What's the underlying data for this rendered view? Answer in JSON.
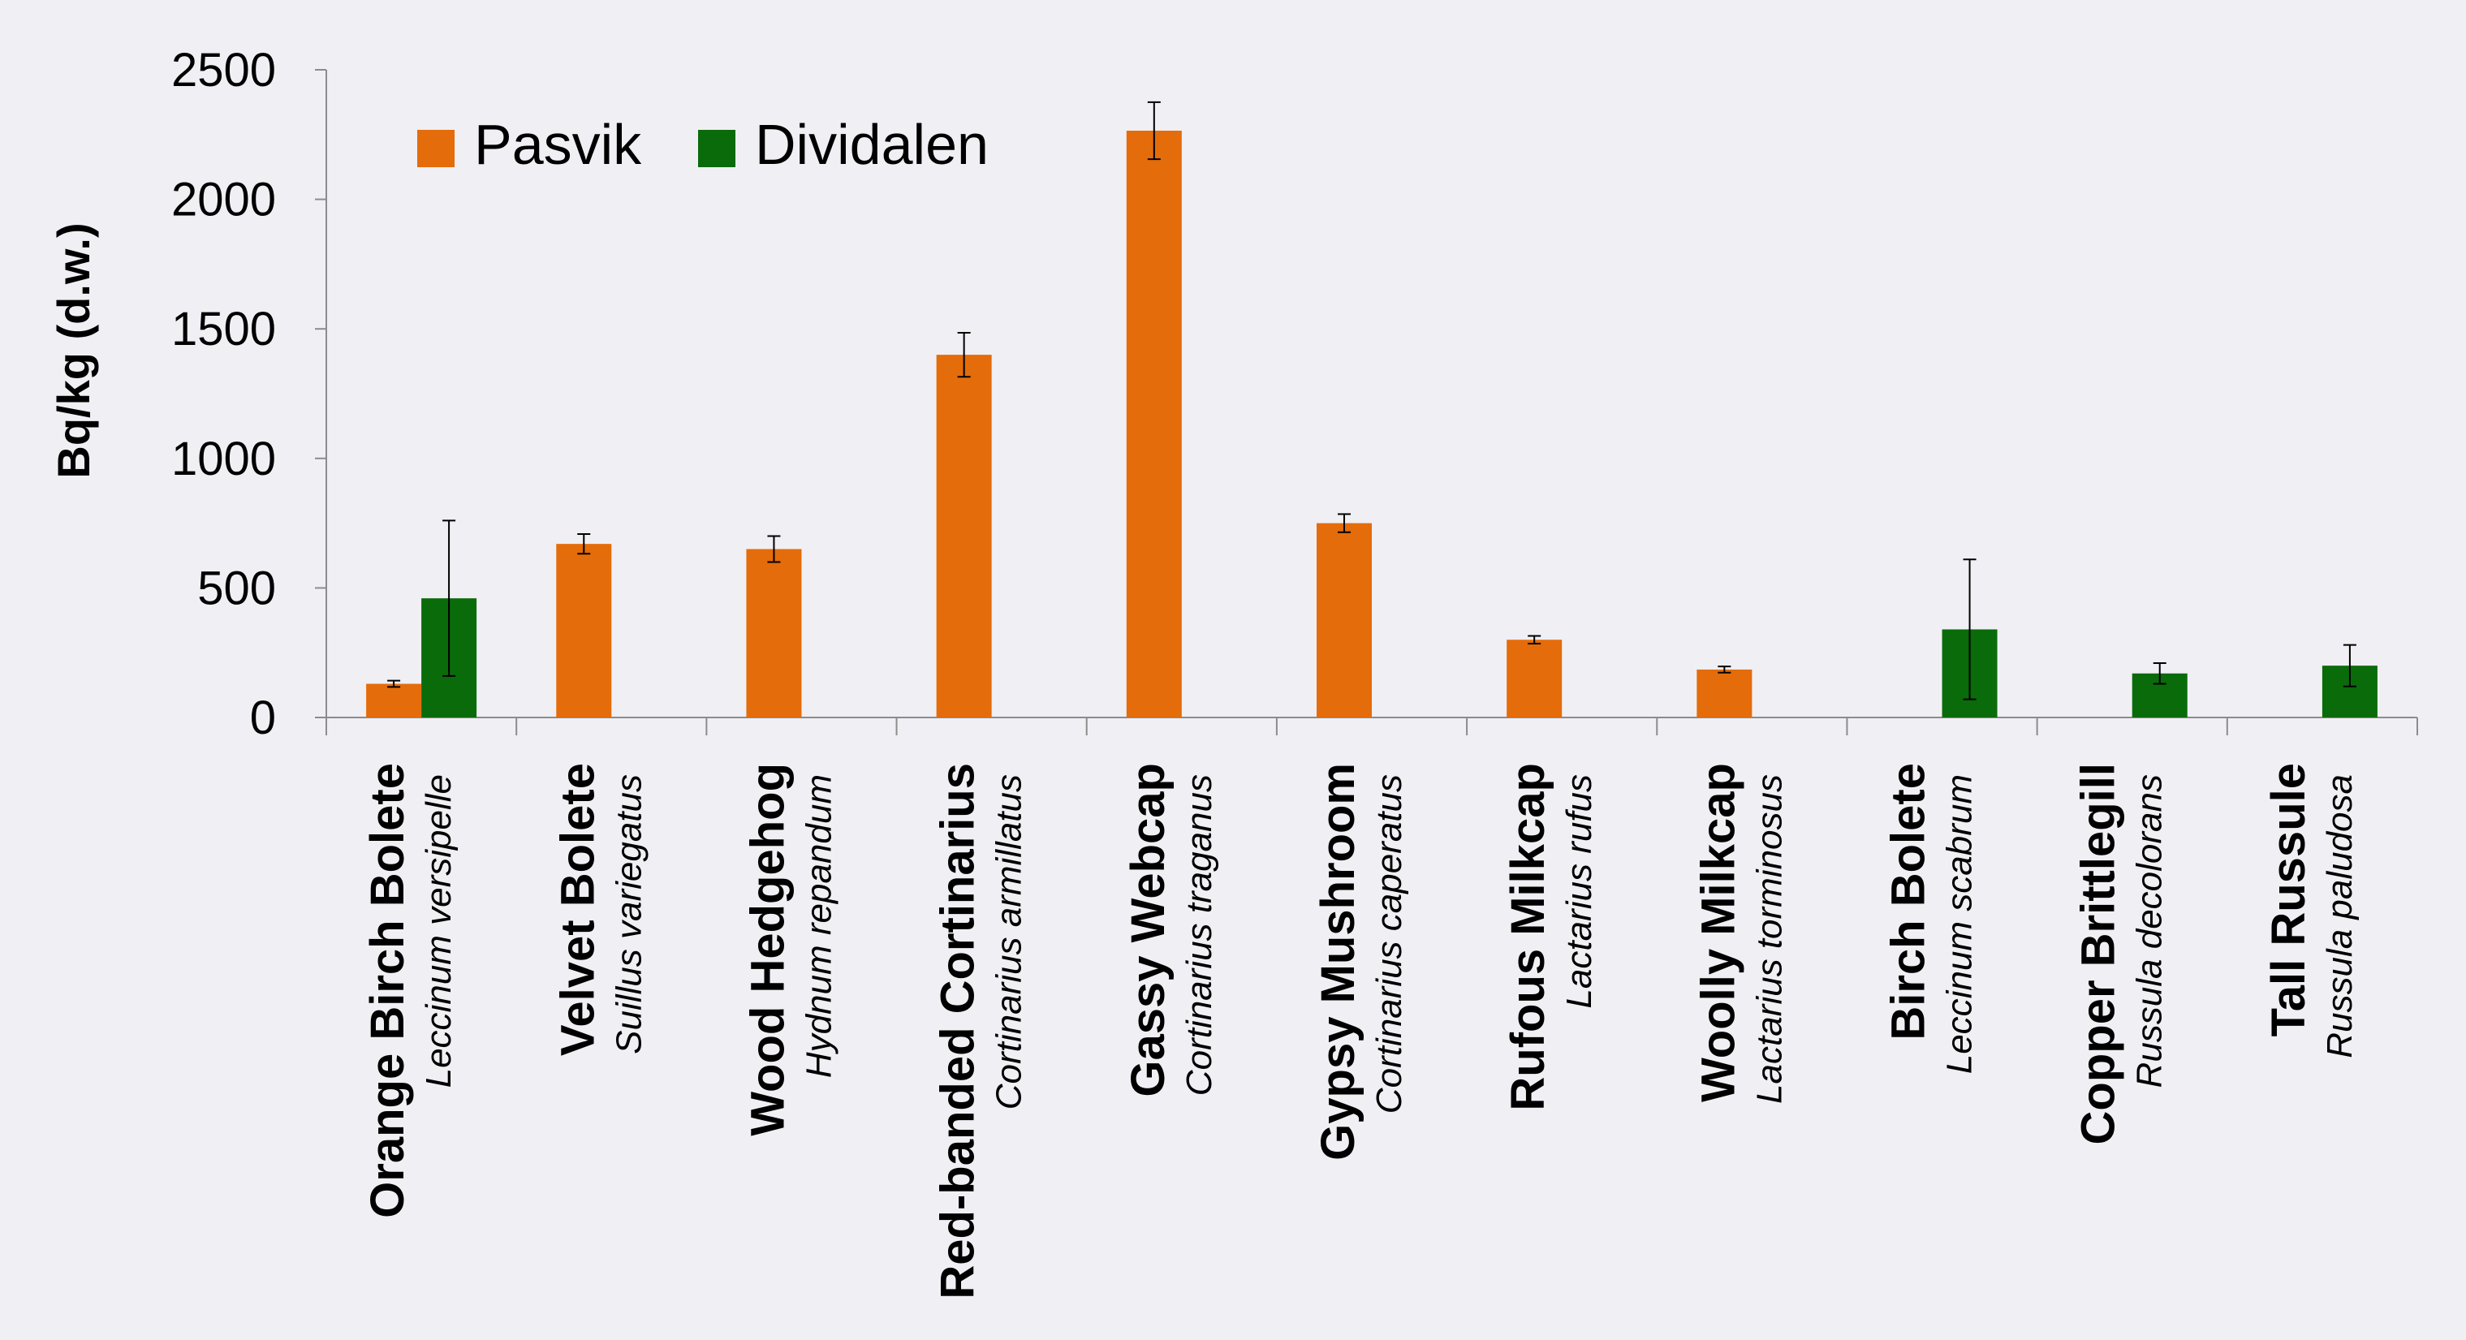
{
  "chart_data": {
    "type": "bar",
    "title": "",
    "xlabel": "",
    "ylabel": "Bq/kg (d.w.)",
    "ylim": [
      0,
      2500
    ],
    "yticks": [
      0,
      500,
      1000,
      1500,
      2000,
      2500
    ],
    "grid": false,
    "legend_position": "top-left",
    "categories": [
      {
        "common": "Orange Birch Bolete",
        "latin": "Leccinum versipelle"
      },
      {
        "common": "Velvet Bolete",
        "latin": "Suillus variegatus"
      },
      {
        "common": "Wood Hedgehog",
        "latin": "Hydnum repandum"
      },
      {
        "common": "Red-banded Cortinarius",
        "latin": "Cortinarius armillatus"
      },
      {
        "common": "Gassy Webcap",
        "latin": "Cortinarius traganus"
      },
      {
        "common": "Gypsy Mushroom",
        "latin": "Cortinarius caperatus"
      },
      {
        "common": "Rufous Milkcap",
        "latin": "Lactarius rufus"
      },
      {
        "common": "Woolly Milkcap",
        "latin": "Lactarius torminosus"
      },
      {
        "common": "Birch Bolete",
        "latin": "Leccinum scabrum"
      },
      {
        "common": "Copper Brittlegill",
        "latin": "Russula decolorans"
      },
      {
        "common": "Tall Russule",
        "latin": "Russula paludosa"
      }
    ],
    "series": [
      {
        "name": "Pasvik",
        "color": "#e46c0a",
        "values": [
          130,
          670,
          650,
          1400,
          2265,
          750,
          300,
          185,
          null,
          null,
          null
        ],
        "errors": [
          12,
          38,
          50,
          85,
          110,
          35,
          15,
          12,
          null,
          null,
          null
        ]
      },
      {
        "name": "Dividalen",
        "color": "#0a6b0a",
        "values": [
          460,
          null,
          null,
          null,
          null,
          null,
          null,
          null,
          340,
          170,
          200
        ],
        "errors": [
          300,
          null,
          null,
          null,
          null,
          null,
          null,
          null,
          270,
          40,
          80
        ]
      }
    ]
  }
}
